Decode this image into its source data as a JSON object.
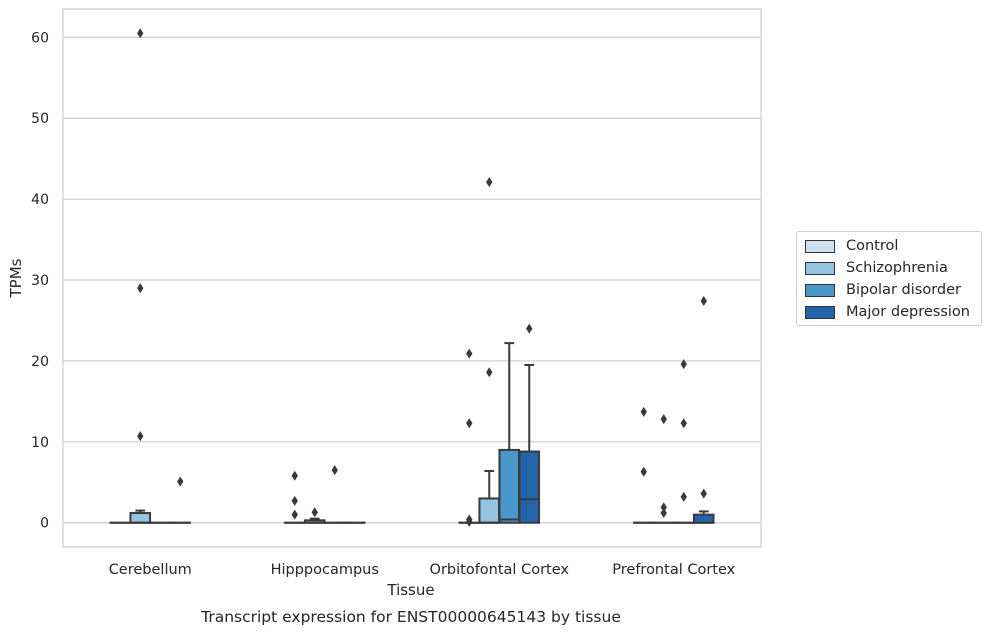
{
  "chart_data": {
    "type": "box",
    "title": "Transcript expression for ENST00000645143 by tissue",
    "xlabel": "Tissue",
    "ylabel": "TPMs",
    "ylim": [
      -3,
      63.5
    ],
    "yticks": [
      0,
      10,
      20,
      30,
      40,
      50,
      60
    ],
    "grid": true,
    "legend_position": "right",
    "categories": [
      "Cerebellum",
      "Hipppocampus",
      "Orbitofontal Cortex",
      "Prefrontal Cortex"
    ],
    "series": [
      {
        "name": "Control",
        "color": "#d0e1f2",
        "boxes": [
          {
            "q1": 0,
            "median": 0,
            "q3": 0,
            "whisker_low": 0,
            "whisker_high": 0,
            "outliers": []
          },
          {
            "q1": 0,
            "median": 0,
            "q3": 0,
            "whisker_low": 0,
            "whisker_high": 0,
            "outliers": [
              5.8,
              2.7,
              1.0
            ]
          },
          {
            "q1": 0,
            "median": 0,
            "q3": 0,
            "whisker_low": 0,
            "whisker_high": 0,
            "outliers": [
              20.9,
              12.3,
              0.4,
              0.1
            ]
          },
          {
            "q1": 0,
            "median": 0,
            "q3": 0,
            "whisker_low": 0,
            "whisker_high": 0,
            "outliers": [
              13.7,
              6.3
            ]
          }
        ]
      },
      {
        "name": "Schizophrenia",
        "color": "#94c4df",
        "boxes": [
          {
            "q1": 0,
            "median": 0,
            "q3": 1.2,
            "whisker_low": 0,
            "whisker_high": 1.5,
            "outliers": [
              60.5,
              29.0,
              10.7
            ]
          },
          {
            "q1": 0,
            "median": 0,
            "q3": 0.3,
            "whisker_low": 0,
            "whisker_high": 0.5,
            "outliers": [
              1.3
            ]
          },
          {
            "q1": 0,
            "median": 0,
            "q3": 3.0,
            "whisker_low": 0,
            "whisker_high": 6.4,
            "outliers": [
              42.1,
              18.6
            ]
          },
          {
            "q1": 0,
            "median": 0,
            "q3": 0,
            "whisker_low": 0,
            "whisker_high": 0,
            "outliers": [
              12.8,
              1.9,
              1.2
            ]
          }
        ]
      },
      {
        "name": "Bipolar disorder",
        "color": "#4a98c9",
        "boxes": [
          {
            "q1": 0,
            "median": 0,
            "q3": 0,
            "whisker_low": 0,
            "whisker_high": 0,
            "outliers": []
          },
          {
            "q1": 0,
            "median": 0,
            "q3": 0,
            "whisker_low": 0,
            "whisker_high": 0,
            "outliers": [
              6.5
            ]
          },
          {
            "q1": 0,
            "median": 0.4,
            "q3": 9.0,
            "whisker_low": 0,
            "whisker_high": 22.2,
            "outliers": []
          },
          {
            "q1": 0,
            "median": 0,
            "q3": 0,
            "whisker_low": 0,
            "whisker_high": 0,
            "outliers": [
              19.6,
              12.3,
              3.2
            ]
          }
        ]
      },
      {
        "name": "Major depression",
        "color": "#2464ab",
        "boxes": [
          {
            "q1": 0,
            "median": 0,
            "q3": 0,
            "whisker_low": 0,
            "whisker_high": 0,
            "outliers": [
              5.1
            ]
          },
          {
            "q1": 0,
            "median": 0,
            "q3": 0,
            "whisker_low": 0,
            "whisker_high": 0,
            "outliers": []
          },
          {
            "q1": 0,
            "median": 2.9,
            "q3": 8.8,
            "whisker_low": 0,
            "whisker_high": 19.5,
            "outliers": [
              24.0
            ]
          },
          {
            "q1": 0,
            "median": 0,
            "q3": 1.0,
            "whisker_low": 0,
            "whisker_high": 1.4,
            "outliers": [
              27.4,
              3.6
            ]
          }
        ]
      }
    ]
  }
}
